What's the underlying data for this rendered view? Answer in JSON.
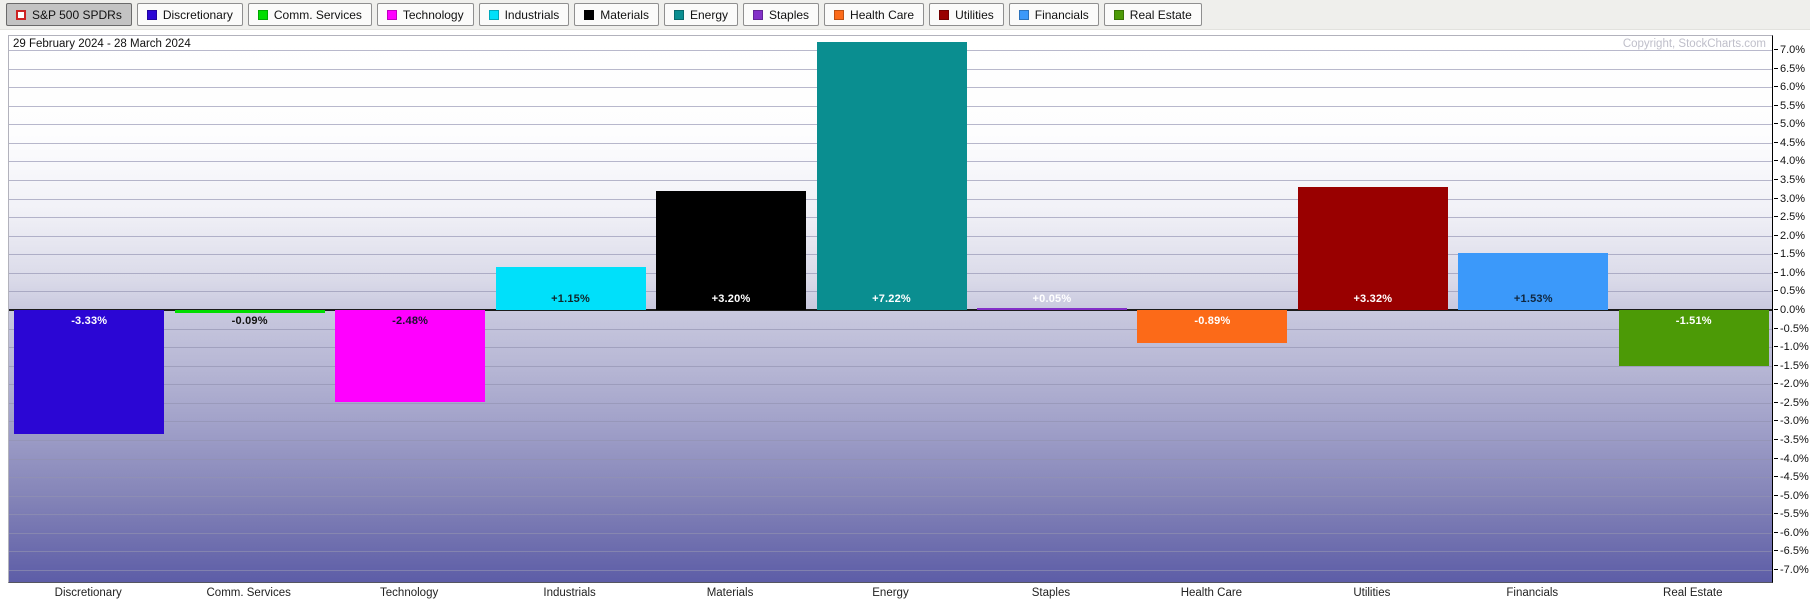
{
  "legend": {
    "selector_label": "S&P 500 SPDRs"
  },
  "header": {
    "copyright": "Copyright, StockCharts.com"
  },
  "chart_data": {
    "type": "bar",
    "title": "29 February 2024 - 28 March 2024",
    "xlabel": "",
    "ylabel": "",
    "categories": [
      "Discretionary",
      "Comm. Services",
      "Technology",
      "Industrials",
      "Materials",
      "Energy",
      "Staples",
      "Health Care",
      "Utilities",
      "Financials",
      "Real Estate"
    ],
    "values": [
      -3.33,
      -0.09,
      -2.48,
      1.15,
      3.2,
      7.22,
      0.05,
      -0.89,
      3.32,
      1.53,
      -1.51
    ],
    "value_labels": [
      "-3.33%",
      "-0.09%",
      "-2.48%",
      "+1.15%",
      "+3.20%",
      "+7.22%",
      "+0.05%",
      "-0.89%",
      "+3.32%",
      "+1.53%",
      "-1.51%"
    ],
    "bar_colors": [
      "#2b06d4",
      "#00dd00",
      "#ff00ff",
      "#00e0fa",
      "#000000",
      "#0a8e90",
      "#8330c8",
      "#fc6a18",
      "#990000",
      "#3b99fa",
      "#4c9a06"
    ],
    "label_colors": [
      "#ffffff",
      "#111111",
      "#1c1030",
      "#10262a",
      "#ffffff",
      "#ffffff",
      "#ffffff",
      "#ffffff",
      "#ffffff",
      "#10263d",
      "#ffffff"
    ],
    "ylim": [
      -7.0,
      7.0
    ],
    "ytick_step": 0.5,
    "grid": true,
    "legend_position": "top"
  }
}
